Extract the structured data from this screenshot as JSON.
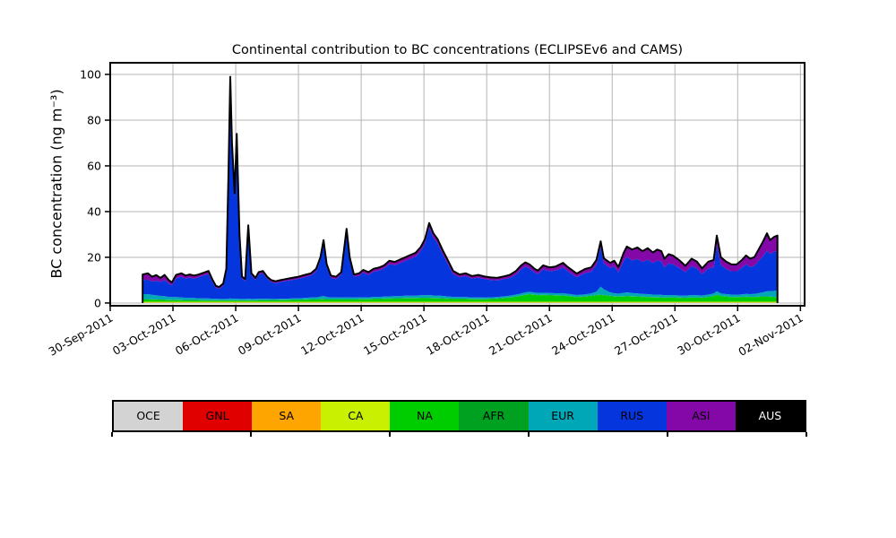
{
  "chart_data": {
    "type": "area",
    "stacked": true,
    "title": "Continental contribution to BC concentrations (ECLIPSEv6 and CAMS)",
    "ylabel": "BC concentration (ng m⁻³)",
    "xlabel": "",
    "grid": true,
    "grid_color": "#b4b4b4",
    "total_line_color": "#000000",
    "legend_position": "bottom",
    "y_ticks": [
      0,
      20,
      40,
      60,
      80,
      100
    ],
    "ylim": [
      -1.2,
      105.1
    ],
    "x_unit": "days since 30-Sep-2011 00:00",
    "xlim_days": [
      0,
      33.2
    ],
    "x_tick_days": [
      0,
      3,
      6,
      9,
      12,
      15,
      18,
      21,
      24,
      27,
      30,
      33
    ],
    "x_tick_labels": [
      "30-Sep-2011",
      "03-Oct-2011",
      "06-Oct-2011",
      "09-Oct-2011",
      "12-Oct-2011",
      "15-Oct-2011",
      "18-Oct-2011",
      "21-Oct-2011",
      "24-Oct-2011",
      "27-Oct-2011",
      "30-Oct-2011",
      "02-Nov-2011"
    ],
    "legend_text_colors": {
      "AUS": "#ffffff"
    },
    "t": [
      1.55,
      1.8,
      2.0,
      2.2,
      2.4,
      2.6,
      2.8,
      2.95,
      3.15,
      3.4,
      3.6,
      3.8,
      4.0,
      4.2,
      4.45,
      4.7,
      4.9,
      5.05,
      5.2,
      5.4,
      5.55,
      5.65,
      5.74,
      5.82,
      5.95,
      6.05,
      6.18,
      6.3,
      6.45,
      6.6,
      6.75,
      6.95,
      7.1,
      7.3,
      7.5,
      7.7,
      7.9,
      8.15,
      8.4,
      8.7,
      9.0,
      9.3,
      9.6,
      9.85,
      10.05,
      10.2,
      10.35,
      10.55,
      10.8,
      11.05,
      11.3,
      11.45,
      11.65,
      11.9,
      12.1,
      12.35,
      12.6,
      12.85,
      13.1,
      13.35,
      13.6,
      13.85,
      14.1,
      14.35,
      14.6,
      14.85,
      15.05,
      15.25,
      15.45,
      15.65,
      15.9,
      16.1,
      16.4,
      16.7,
      17.0,
      17.3,
      17.6,
      17.9,
      18.2,
      18.5,
      18.8,
      19.1,
      19.4,
      19.65,
      19.85,
      20.05,
      20.3,
      20.45,
      20.7,
      21.0,
      21.3,
      21.65,
      21.9,
      22.3,
      22.7,
      23.0,
      23.25,
      23.45,
      23.6,
      23.9,
      24.1,
      24.3,
      24.55,
      24.7,
      24.95,
      25.2,
      25.45,
      25.7,
      25.95,
      26.15,
      26.35,
      26.5,
      26.7,
      26.9,
      27.2,
      27.5,
      27.8,
      28.05,
      28.3,
      28.6,
      28.85,
      29.0,
      29.2,
      29.45,
      29.7,
      29.95,
      30.2,
      30.4,
      30.6,
      30.8,
      31.0,
      31.2,
      31.4,
      31.55,
      31.75,
      31.9
    ],
    "series": [
      {
        "name": "OCE",
        "color": "#d3d3d3",
        "constant": 0.05
      },
      {
        "name": "GNL",
        "color": "#e00000",
        "constant": 0.05
      },
      {
        "name": "SA",
        "color": "#ffa500",
        "constant": 0.15
      },
      {
        "name": "CA",
        "color": "#c8f000",
        "constant": 0.3
      },
      {
        "name": "NA",
        "color": "#00cd00",
        "values": [
          1.0,
          1.0,
          0.9,
          0.9,
          0.8,
          0.8,
          0.7,
          0.7,
          0.7,
          0.7,
          0.6,
          0.6,
          0.6,
          0.6,
          0.5,
          0.5,
          0.5,
          0.5,
          0.5,
          0.5,
          0.5,
          0.5,
          0.5,
          0.5,
          0.5,
          0.5,
          0.5,
          0.5,
          0.5,
          0.5,
          0.5,
          0.5,
          0.6,
          0.6,
          0.6,
          0.6,
          0.6,
          0.7,
          0.7,
          0.8,
          0.8,
          0.9,
          1.0,
          1.0,
          1.1,
          1.1,
          1.0,
          1.0,
          1.0,
          1.0,
          1.0,
          1.0,
          1.0,
          1.1,
          1.1,
          1.1,
          1.2,
          1.2,
          1.3,
          1.3,
          1.4,
          1.4,
          1.5,
          1.5,
          1.5,
          1.6,
          1.6,
          1.6,
          1.5,
          1.5,
          1.4,
          1.3,
          1.2,
          1.2,
          1.2,
          1.1,
          1.1,
          1.1,
          1.2,
          1.3,
          1.5,
          1.8,
          2.2,
          2.6,
          3.0,
          3.2,
          3.0,
          2.8,
          2.9,
          2.8,
          2.7,
          2.6,
          2.4,
          2.0,
          2.2,
          2.5,
          2.8,
          3.0,
          2.8,
          2.5,
          2.3,
          2.2,
          2.3,
          2.4,
          2.3,
          2.2,
          2.1,
          2.0,
          1.9,
          1.9,
          1.8,
          1.7,
          1.8,
          1.8,
          1.7,
          1.6,
          1.8,
          1.8,
          1.7,
          2.0,
          2.4,
          3.0,
          2.4,
          2.2,
          2.0,
          1.9,
          2.0,
          2.1,
          2.0,
          2.0,
          2.1,
          2.2,
          2.2,
          2.1,
          2.0,
          2.0
        ]
      },
      {
        "name": "AFR",
        "color": "#00a020",
        "constant": 0.15
      },
      {
        "name": "EUR",
        "color": "#00a7b7",
        "values": [
          2.2,
          2.2,
          2.0,
          1.8,
          1.6,
          1.5,
          1.3,
          1.2,
          1.2,
          1.1,
          1.0,
          0.9,
          0.9,
          0.8,
          0.8,
          0.8,
          0.7,
          0.7,
          0.6,
          0.6,
          0.6,
          0.7,
          0.8,
          0.7,
          0.7,
          0.7,
          0.6,
          0.6,
          0.6,
          0.7,
          0.6,
          0.6,
          0.6,
          0.6,
          0.6,
          0.5,
          0.5,
          0.5,
          0.5,
          0.5,
          0.6,
          0.6,
          0.7,
          0.8,
          1.0,
          1.3,
          1.0,
          0.8,
          0.7,
          0.7,
          0.8,
          0.7,
          0.7,
          0.7,
          0.7,
          0.7,
          0.8,
          0.8,
          0.8,
          0.9,
          0.9,
          0.9,
          1.0,
          1.0,
          1.0,
          1.1,
          1.1,
          1.2,
          1.1,
          1.1,
          1.0,
          0.9,
          0.8,
          0.7,
          0.7,
          0.7,
          0.7,
          0.6,
          0.6,
          0.6,
          0.7,
          0.7,
          0.8,
          0.9,
          1.0,
          1.0,
          0.9,
          0.9,
          0.9,
          0.9,
          0.9,
          1.0,
          0.9,
          0.8,
          0.9,
          1.0,
          1.5,
          3.5,
          2.5,
          1.5,
          1.3,
          1.2,
          1.5,
          1.6,
          1.4,
          1.3,
          1.2,
          1.2,
          1.1,
          1.1,
          1.1,
          1.0,
          1.0,
          1.0,
          0.9,
          0.9,
          1.0,
          0.9,
          0.9,
          1.0,
          1.1,
          1.5,
          1.1,
          1.0,
          1.0,
          1.0,
          1.1,
          1.2,
          1.2,
          1.3,
          1.5,
          1.8,
          2.2,
          2.4,
          2.6,
          2.8
        ]
      },
      {
        "name": "RUS",
        "color": "#0435dd",
        "values": [
          6.1,
          6.3,
          5.7,
          6.4,
          6.1,
          7.1,
          5.8,
          5.2,
          8.2,
          9.0,
          8.4,
          8.9,
          8.5,
          9.1,
          10.0,
          10.7,
          7.1,
          4.7,
          4.4,
          5.8,
          12.0,
          51.1,
          94.5,
          66.1,
          44.6,
          70.1,
          27.0,
          8.8,
          7.8,
          30.8,
          10.3,
          8.3,
          10.6,
          11.1,
          8.7,
          7.4,
          6.9,
          7.3,
          7.8,
          8.1,
          8.5,
          9.1,
          9.6,
          11.4,
          15.9,
          22.9,
          13.1,
          8.5,
          8.1,
          10.0,
          28.5,
          16.4,
          9.1,
          9.4,
          10.8,
          9.8,
          11.0,
          11.5,
          12.3,
          14.1,
          13.5,
          14.4,
          15.2,
          16.1,
          17.1,
          19.3,
          22.7,
          29.5,
          25.3,
          22.9,
          18.1,
          15.0,
          9.9,
          8.7,
          9.2,
          8.2,
          8.6,
          8.1,
          7.6,
          7.3,
          7.5,
          7.8,
          8.8,
          10.6,
          11.3,
          10.2,
          8.7,
          8.3,
          10.3,
          9.5,
          9.9,
          11.3,
          9.7,
          7.8,
          9.3,
          9.5,
          11.8,
          17.3,
          11.4,
          10.7,
          11.7,
          9.3,
          14.0,
          15.5,
          14.2,
          15.1,
          13.9,
          15.1,
          13.8,
          14.9,
          14.6,
          12.2,
          13.9,
          13.5,
          12.1,
          10.3,
          12.7,
          11.7,
          9.3,
          11.4,
          11.4,
          20.1,
          12.4,
          11.0,
          10.2,
          10.3,
          11.6,
          13.0,
          11.9,
          12.3,
          14.1,
          15.5,
          17.9,
          16.3,
          17.2,
          17.2
        ]
      },
      {
        "name": "ASI",
        "color": "#8408a8",
        "values": [
          2.5,
          2.8,
          2.2,
          2.4,
          1.8,
          2.2,
          1.5,
          1.2,
          1.5,
          1.5,
          1.3,
          1.4,
          1.3,
          1.2,
          1.2,
          1.3,
          1.0,
          0.9,
          0.8,
          0.9,
          1.2,
          2.0,
          2.5,
          2.0,
          1.5,
          2.0,
          1.2,
          0.9,
          0.9,
          1.3,
          0.9,
          0.9,
          1.0,
          1.0,
          0.9,
          0.8,
          0.8,
          0.8,
          0.8,
          0.9,
          0.9,
          1.0,
          1.0,
          1.1,
          1.3,
          1.5,
          1.2,
          1.0,
          1.0,
          1.1,
          1.5,
          1.2,
          1.0,
          1.1,
          1.2,
          1.2,
          1.3,
          1.3,
          1.4,
          1.5,
          1.5,
          1.6,
          1.6,
          1.7,
          1.7,
          1.8,
          1.9,
          2.0,
          1.9,
          1.8,
          1.8,
          1.6,
          1.4,
          1.2,
          1.2,
          1.1,
          1.2,
          1.1,
          1.1,
          1.1,
          1.2,
          1.3,
          1.5,
          1.7,
          1.8,
          1.8,
          1.6,
          1.5,
          1.7,
          1.7,
          1.8,
          2.0,
          1.9,
          1.6,
          1.8,
          1.9,
          2.1,
          2.5,
          2.2,
          2.2,
          2.5,
          2.3,
          3.5,
          4.5,
          4.8,
          5.0,
          4.8,
          5.0,
          4.6,
          4.8,
          4.5,
          3.8,
          4.0,
          3.8,
          3.4,
          2.8,
          3.2,
          3.0,
          2.6,
          3.0,
          3.2,
          4.2,
          3.4,
          3.2,
          3.0,
          3.0,
          3.4,
          3.8,
          3.6,
          3.8,
          5.0,
          6.5,
          7.5,
          6.0,
          6.5,
          6.8
        ]
      },
      {
        "name": "AUS",
        "color": "#000000",
        "constant": 0.0
      }
    ]
  }
}
